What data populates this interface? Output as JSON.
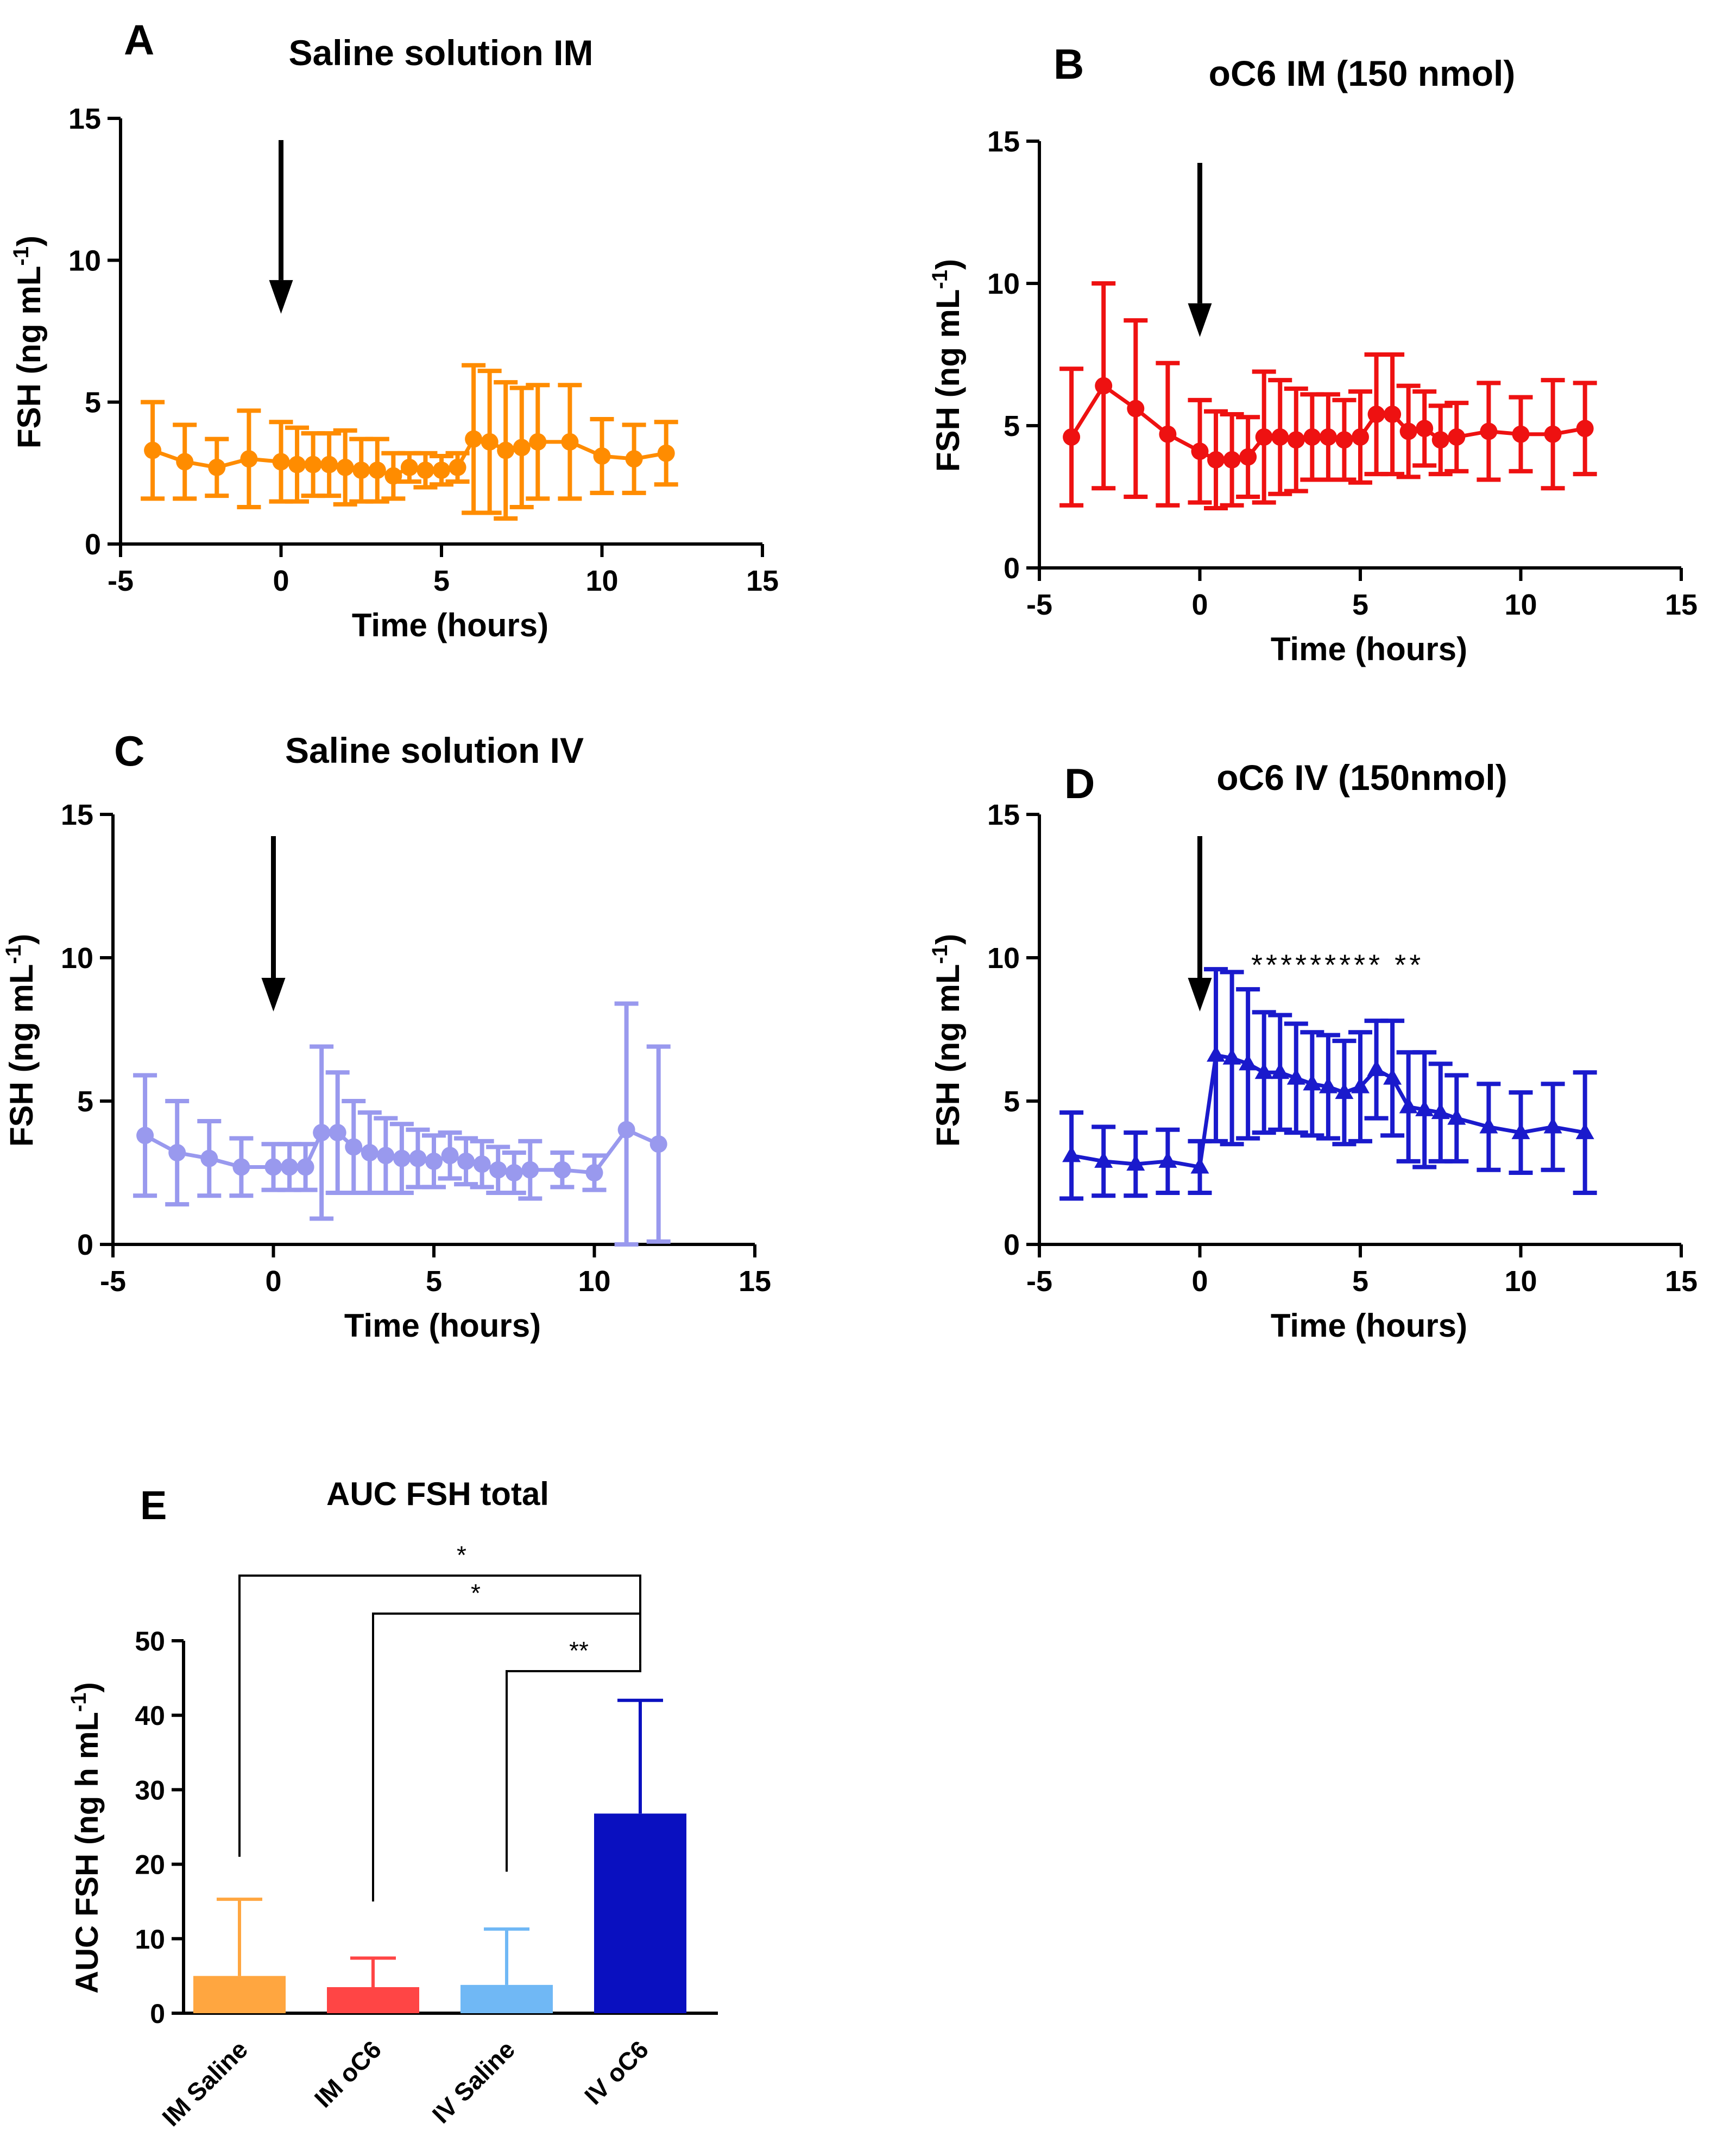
{
  "figure": {
    "x_axis_label": "Time (hours)",
    "y_axis_label": "FSH (ng mL",
    "y_axis_superscript": "-1",
    "y_axis_close": ")"
  },
  "chart_data": [
    {
      "panel": "A",
      "type": "line",
      "title": "Saline solution IM",
      "xlabel": "Time (hours)",
      "ylabel": "FSH (ng mL-1)",
      "xlim": [
        -5,
        15
      ],
      "ylim": [
        0,
        15
      ],
      "x_ticks": [
        -5,
        0,
        5,
        10,
        15
      ],
      "y_ticks": [
        0,
        5,
        10,
        15
      ],
      "color": "#ff8c00",
      "marker": "circle",
      "arrow_at_x": 0,
      "annotation": "",
      "x": [
        -4,
        -3,
        -2,
        -1,
        0,
        0.5,
        1,
        1.5,
        2,
        2.5,
        3,
        3.5,
        4,
        4.5,
        5,
        5.5,
        6,
        6.5,
        7,
        7.5,
        8,
        9,
        10,
        11,
        12
      ],
      "y": [
        3.3,
        2.9,
        2.7,
        3.0,
        2.9,
        2.8,
        2.8,
        2.8,
        2.7,
        2.6,
        2.6,
        2.4,
        2.7,
        2.6,
        2.6,
        2.7,
        3.7,
        3.6,
        3.3,
        3.4,
        3.6,
        3.6,
        3.1,
        3.0,
        3.2
      ],
      "error": [
        1.7,
        1.3,
        1.0,
        1.7,
        1.4,
        1.3,
        1.1,
        1.1,
        1.3,
        1.1,
        1.1,
        0.8,
        0.5,
        0.6,
        0.5,
        0.5,
        2.6,
        2.5,
        2.4,
        2.1,
        2.0,
        2.0,
        1.3,
        1.2,
        1.1
      ]
    },
    {
      "panel": "B",
      "type": "line",
      "title": "oC6 IM (150 nmol)",
      "xlabel": "Time (hours)",
      "ylabel": "FSH (ng mL-1)",
      "xlim": [
        -5,
        15
      ],
      "ylim": [
        0,
        15
      ],
      "x_ticks": [
        -5,
        0,
        5,
        10,
        15
      ],
      "y_ticks": [
        0,
        5,
        10,
        15
      ],
      "color": "#ee1111",
      "marker": "circle",
      "arrow_at_x": 0,
      "annotation": "",
      "x": [
        -4,
        -3,
        -2,
        -1,
        0,
        0.5,
        1,
        1.5,
        2,
        2.5,
        3,
        3.5,
        4,
        4.5,
        5,
        5.5,
        6,
        6.5,
        7,
        7.5,
        8,
        9,
        10,
        11,
        12
      ],
      "y": [
        4.6,
        6.4,
        5.6,
        4.7,
        4.1,
        3.8,
        3.8,
        3.9,
        4.6,
        4.6,
        4.5,
        4.6,
        4.6,
        4.5,
        4.6,
        5.4,
        5.4,
        4.8,
        4.9,
        4.5,
        4.6,
        4.8,
        4.7,
        4.7,
        4.9
      ],
      "error": [
        2.4,
        3.6,
        3.1,
        2.5,
        1.8,
        1.7,
        1.6,
        1.4,
        2.3,
        2.0,
        1.8,
        1.5,
        1.5,
        1.4,
        1.6,
        2.1,
        2.1,
        1.6,
        1.3,
        1.2,
        1.2,
        1.7,
        1.3,
        1.9,
        1.6
      ]
    },
    {
      "panel": "C",
      "type": "line",
      "title": "Saline solution IV",
      "xlabel": "Time (hours)",
      "ylabel": "FSH (ng mL-1)",
      "xlim": [
        -5,
        15
      ],
      "ylim": [
        0,
        15
      ],
      "x_ticks": [
        -5,
        0,
        5,
        10,
        15
      ],
      "y_ticks": [
        0,
        5,
        10,
        15
      ],
      "color": "#9999ee",
      "marker": "circle",
      "arrow_at_x": 0,
      "annotation": "",
      "x": [
        -4,
        -3,
        -2,
        -1,
        0,
        0.5,
        1,
        1.5,
        2,
        2.5,
        3,
        3.5,
        4,
        4.5,
        5,
        5.5,
        6,
        6.5,
        7,
        7.5,
        8,
        9,
        10,
        11,
        12
      ],
      "y": [
        3.8,
        3.2,
        3.0,
        2.7,
        2.7,
        2.7,
        2.7,
        3.9,
        3.9,
        3.4,
        3.2,
        3.1,
        3.0,
        3.0,
        2.9,
        3.1,
        2.9,
        2.8,
        2.6,
        2.5,
        2.6,
        2.6,
        2.5,
        4.0,
        3.5
      ],
      "error": [
        2.1,
        1.8,
        1.3,
        1.0,
        0.8,
        0.8,
        0.8,
        3.0,
        2.1,
        1.6,
        1.4,
        1.3,
        1.2,
        1.0,
        0.9,
        0.8,
        0.8,
        0.8,
        0.8,
        0.7,
        1.0,
        0.6,
        0.6,
        4.4,
        3.4
      ]
    },
    {
      "panel": "D",
      "type": "line",
      "title": "oC6 IV (150nmol)",
      "xlabel": "Time (hours)",
      "ylabel": "FSH (ng mL-1)",
      "xlim": [
        -5,
        15
      ],
      "ylim": [
        0,
        15
      ],
      "x_ticks": [
        -5,
        0,
        5,
        10,
        15
      ],
      "y_ticks": [
        0,
        5,
        10,
        15
      ],
      "color": "#1a1acc",
      "marker": "triangle",
      "arrow_at_x": 0,
      "annotation": "********* **",
      "x": [
        -4,
        -3,
        -2,
        -1,
        0,
        0.5,
        1,
        1.5,
        2,
        2.5,
        3,
        3.5,
        4,
        4.5,
        5,
        5.5,
        6,
        6.5,
        7,
        7.5,
        8,
        9,
        10,
        11,
        12
      ],
      "y": [
        3.1,
        2.9,
        2.8,
        2.9,
        2.7,
        6.6,
        6.5,
        6.3,
        6.0,
        6.0,
        5.8,
        5.6,
        5.5,
        5.3,
        5.5,
        6.1,
        5.8,
        4.8,
        4.7,
        4.6,
        4.4,
        4.1,
        3.9,
        4.1,
        3.9
      ],
      "error": [
        1.5,
        1.2,
        1.1,
        1.1,
        0.9,
        3.0,
        3.0,
        2.6,
        2.1,
        2.0,
        1.9,
        1.8,
        1.8,
        1.8,
        1.9,
        1.7,
        2.0,
        1.9,
        2.0,
        1.7,
        1.5,
        1.5,
        1.4,
        1.5,
        2.1
      ]
    },
    {
      "panel": "E",
      "type": "bar",
      "title": "AUC FSH total",
      "xlabel": "",
      "ylabel": "AUC FSH (ng h mL-1)",
      "ylim": [
        0,
        50
      ],
      "y_ticks": [
        0,
        10,
        20,
        30,
        40,
        50
      ],
      "categories": [
        "IM Saline",
        "IM oC6",
        "IV Saline",
        "IV oC6"
      ],
      "values": [
        5.0,
        3.5,
        3.8,
        26.8
      ],
      "errors": [
        10.3,
        3.9,
        7.5,
        15.2
      ],
      "colors": [
        "#ffa640",
        "#ff4545",
        "#70b8f5",
        "#0a10c0"
      ],
      "significance": [
        {
          "from": "IM Saline",
          "to": "IV oC6",
          "label": "*"
        },
        {
          "from": "IM oC6",
          "to": "IV oC6",
          "label": "*"
        },
        {
          "from": "IV Saline",
          "to": "IV oC6",
          "label": "**"
        }
      ]
    }
  ],
  "panel_e_axis": {
    "ylabel": "AUC FSH (ng h mL",
    "superscript": "-1",
    "close": ")"
  }
}
